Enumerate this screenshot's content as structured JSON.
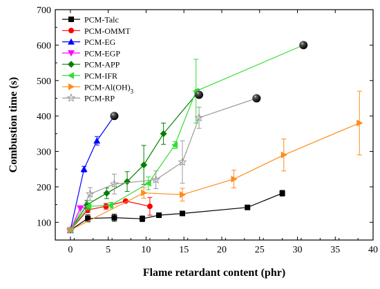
{
  "chart_data": {
    "type": "scatter",
    "xlabel": "Flame retardant content (phr)",
    "ylabel": "Combustion time (s)",
    "xlim": [
      -2,
      40
    ],
    "ylim": [
      50,
      700
    ],
    "x_ticks": [
      0,
      5,
      10,
      15,
      20,
      25,
      30,
      35,
      40
    ],
    "y_ticks": [
      100,
      200,
      300,
      400,
      500,
      600,
      700
    ],
    "legend_position": "top-left",
    "series": [
      {
        "name": "PCM-Talc",
        "color": "#000000",
        "marker": "square",
        "line": true,
        "points": [
          {
            "x": 0,
            "y": 78,
            "err": 0
          },
          {
            "x": 2.3,
            "y": 111,
            "err": 10
          },
          {
            "x": 5.8,
            "y": 113,
            "err": 10
          },
          {
            "x": 9.5,
            "y": 110,
            "err": 8
          },
          {
            "x": 11.7,
            "y": 120,
            "err": 0
          },
          {
            "x": 14.8,
            "y": 125,
            "err": 0
          },
          {
            "x": 23.4,
            "y": 142,
            "err": 0
          },
          {
            "x": 28,
            "y": 182,
            "err": 8
          }
        ]
      },
      {
        "name": "PCM-OMMT",
        "color": "#ff0000",
        "marker": "circle",
        "line": true,
        "points": [
          {
            "x": 0,
            "y": 78,
            "err": 0
          },
          {
            "x": 2.3,
            "y": 135,
            "err": 8
          },
          {
            "x": 4.7,
            "y": 145,
            "err": 8
          },
          {
            "x": 7.3,
            "y": 160,
            "err": 0
          },
          {
            "x": 10.5,
            "y": 145,
            "err": 25
          }
        ]
      },
      {
        "name": "PCM-EG",
        "color": "#0000ff",
        "marker": "triangle-up",
        "line": true,
        "points": [
          {
            "x": 0,
            "y": 78,
            "err": 0
          },
          {
            "x": 1.8,
            "y": 250,
            "err": 8
          },
          {
            "x": 3.5,
            "y": 330,
            "err": 12
          }
        ]
      },
      {
        "name": "PCM-EGP",
        "color": "#ff00ff",
        "marker": "triangle-down",
        "line": true,
        "points": [
          {
            "x": 0,
            "y": 78,
            "err": 0
          },
          {
            "x": 1.3,
            "y": 140,
            "err": 0
          },
          {
            "x": 2.2,
            "y": 142,
            "err": 0
          }
        ]
      },
      {
        "name": "PCM-APP",
        "color": "#008000",
        "marker": "diamond",
        "line": true,
        "points": [
          {
            "x": 0,
            "y": 78,
            "err": 0
          },
          {
            "x": 2.2,
            "y": 150,
            "err": 12
          },
          {
            "x": 4.8,
            "y": 182,
            "err": 15
          },
          {
            "x": 7.5,
            "y": 215,
            "err": 28
          },
          {
            "x": 9.7,
            "y": 262,
            "err": 55
          },
          {
            "x": 12.3,
            "y": 350,
            "err": 30
          },
          {
            "x": 16.8,
            "y": 465,
            "err": 10
          }
        ]
      },
      {
        "name": "PCM-IFR",
        "color": "#33dd33",
        "marker": "triangle-left",
        "line": true,
        "points": [
          {
            "x": 0,
            "y": 78,
            "err": 0
          },
          {
            "x": 2.4,
            "y": 145,
            "err": 10
          },
          {
            "x": 5.3,
            "y": 148,
            "err": 8
          },
          {
            "x": 10.3,
            "y": 210,
            "err": 18
          },
          {
            "x": 13.8,
            "y": 318,
            "err": 10
          },
          {
            "x": 16.6,
            "y": 470,
            "err": 90
          }
        ]
      },
      {
        "name": "PCM-Al(OH)",
        "name_sub": "3",
        "color": "#ff8c1a",
        "marker": "triangle-right",
        "line": true,
        "points": [
          {
            "x": 0,
            "y": 78,
            "err": 0
          },
          {
            "x": 9.7,
            "y": 183,
            "err": 15
          },
          {
            "x": 14.8,
            "y": 178,
            "err": 18
          },
          {
            "x": 21.6,
            "y": 222,
            "err": 25
          },
          {
            "x": 28.2,
            "y": 290,
            "err": 45
          },
          {
            "x": 38.2,
            "y": 380,
            "err": 90
          }
        ]
      },
      {
        "name": "PCM-RP",
        "color": "#999999",
        "marker": "star",
        "line": true,
        "points": [
          {
            "x": 0,
            "y": 78,
            "err": 0
          },
          {
            "x": 2.6,
            "y": 180,
            "err": 18
          },
          {
            "x": 5.8,
            "y": 208,
            "err": 28
          },
          {
            "x": 11.3,
            "y": 220,
            "err": 25
          },
          {
            "x": 14.8,
            "y": 270,
            "err": 60
          },
          {
            "x": 17,
            "y": 395,
            "err": 30
          },
          {
            "x": 24.6,
            "y": 450,
            "err": 0
          }
        ]
      }
    ],
    "endpoint_balls": [
      {
        "x": 5.8,
        "y": 400
      },
      {
        "x": 17,
        "y": 460
      },
      {
        "x": 24.6,
        "y": 450
      },
      {
        "x": 30.8,
        "y": 600
      }
    ],
    "extra_segments": [
      {
        "from_series": "PCM-EG",
        "from_x": 3.5,
        "from_y": 330,
        "to_x": 5.8,
        "to_y": 400,
        "color": "#0000ff"
      },
      {
        "from_series": "PCM-IFR",
        "from_x": 16.6,
        "from_y": 470,
        "to_x": 30.8,
        "to_y": 600,
        "color": "#33dd33"
      },
      {
        "from_series": "PCM-APP",
        "from_x": 16.8,
        "from_y": 465,
        "to_x": 17,
        "to_y": 460,
        "color": "#008000"
      }
    ]
  }
}
